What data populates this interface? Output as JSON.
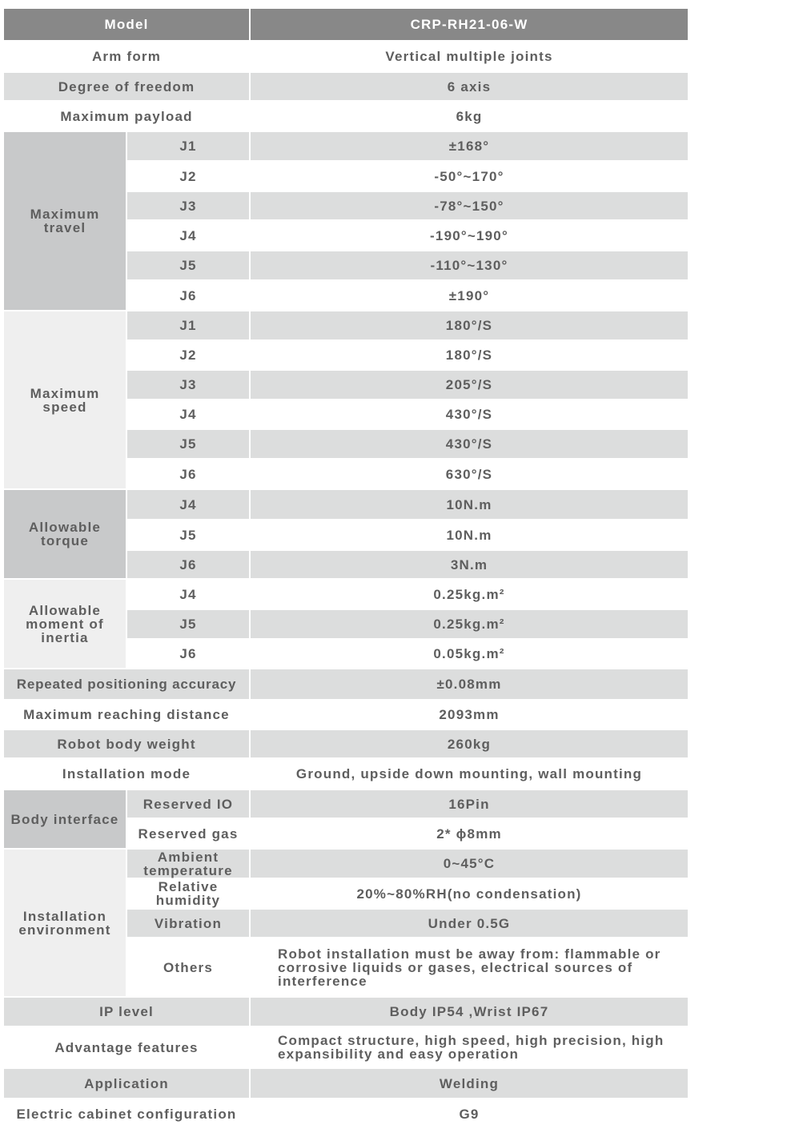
{
  "header": {
    "label": "Model",
    "value": "CRP-RH21-06-W"
  },
  "basic": [
    {
      "label": "Arm form",
      "value": "Vertical multiple joints"
    },
    {
      "label": "Degree of freedom",
      "value": "6 axis"
    },
    {
      "label": "Maximum payload",
      "value": "6kg"
    }
  ],
  "max_travel": {
    "label": "Maximum travel",
    "joints": [
      {
        "joint": "J1",
        "value": "±168°"
      },
      {
        "joint": "J2",
        "value": "-50°~170°"
      },
      {
        "joint": "J3",
        "value": "-78°~150°"
      },
      {
        "joint": "J4",
        "value": "-190°~190°"
      },
      {
        "joint": "J5",
        "value": "-110°~130°"
      },
      {
        "joint": "J6",
        "value": "±190°"
      }
    ]
  },
  "max_speed": {
    "label": "Maximum speed",
    "joints": [
      {
        "joint": "J1",
        "value": "180°/S"
      },
      {
        "joint": "J2",
        "value": "180°/S"
      },
      {
        "joint": "J3",
        "value": "205°/S"
      },
      {
        "joint": "J4",
        "value": "430°/S"
      },
      {
        "joint": "J5",
        "value": "430°/S"
      },
      {
        "joint": "J6",
        "value": "630°/S"
      }
    ]
  },
  "allowable_torque": {
    "label": "Allowable torque",
    "joints": [
      {
        "joint": "J4",
        "value": "10N.m"
      },
      {
        "joint": "J5",
        "value": "10N.m"
      },
      {
        "joint": "J6",
        "value": "3N.m"
      }
    ]
  },
  "allowable_inertia": {
    "label": "Allowable moment of inertia",
    "joints": [
      {
        "joint": "J4",
        "value": "0.25kg.m²"
      },
      {
        "joint": "J5",
        "value": "0.25kg.m²"
      },
      {
        "joint": "J6",
        "value": "0.05kg.m²"
      }
    ]
  },
  "misc": [
    {
      "label": "Repeated positioning accuracy",
      "value": "±0.08mm"
    },
    {
      "label": "Maximum reaching distance",
      "value": "2093mm"
    },
    {
      "label": "Robot body weight",
      "value": "260kg"
    },
    {
      "label": "Installation mode",
      "value": "Ground, upside down mounting,  wall mounting"
    }
  ],
  "body_interface": {
    "label": "Body interface",
    "items": [
      {
        "label": "Reserved IO",
        "value": "16Pin"
      },
      {
        "label": "Reserved gas",
        "value": "2* ϕ8mm"
      }
    ]
  },
  "installation_environment": {
    "label": "Installation environment",
    "items": [
      {
        "label": "Ambient temperature",
        "value": "0~45°C"
      },
      {
        "label": "Relative humidity",
        "value": "20%~80%RH(no condensation)"
      },
      {
        "label": "Vibration",
        "value": "Under 0.5G"
      },
      {
        "label": "Others",
        "value": "Robot installation must be away from: flammable or corrosive liquids or gases, electrical sources of interference"
      }
    ]
  },
  "footer_rows": [
    {
      "label": "IP level",
      "value": "Body IP54 ,Wrist IP67"
    },
    {
      "label": "Advantage features",
      "value": "Compact structure, high speed, high precision, high expansibility and easy operation"
    },
    {
      "label": "Application",
      "value": "Welding"
    },
    {
      "label": "Electric cabinet configuration",
      "value": "G9"
    }
  ]
}
